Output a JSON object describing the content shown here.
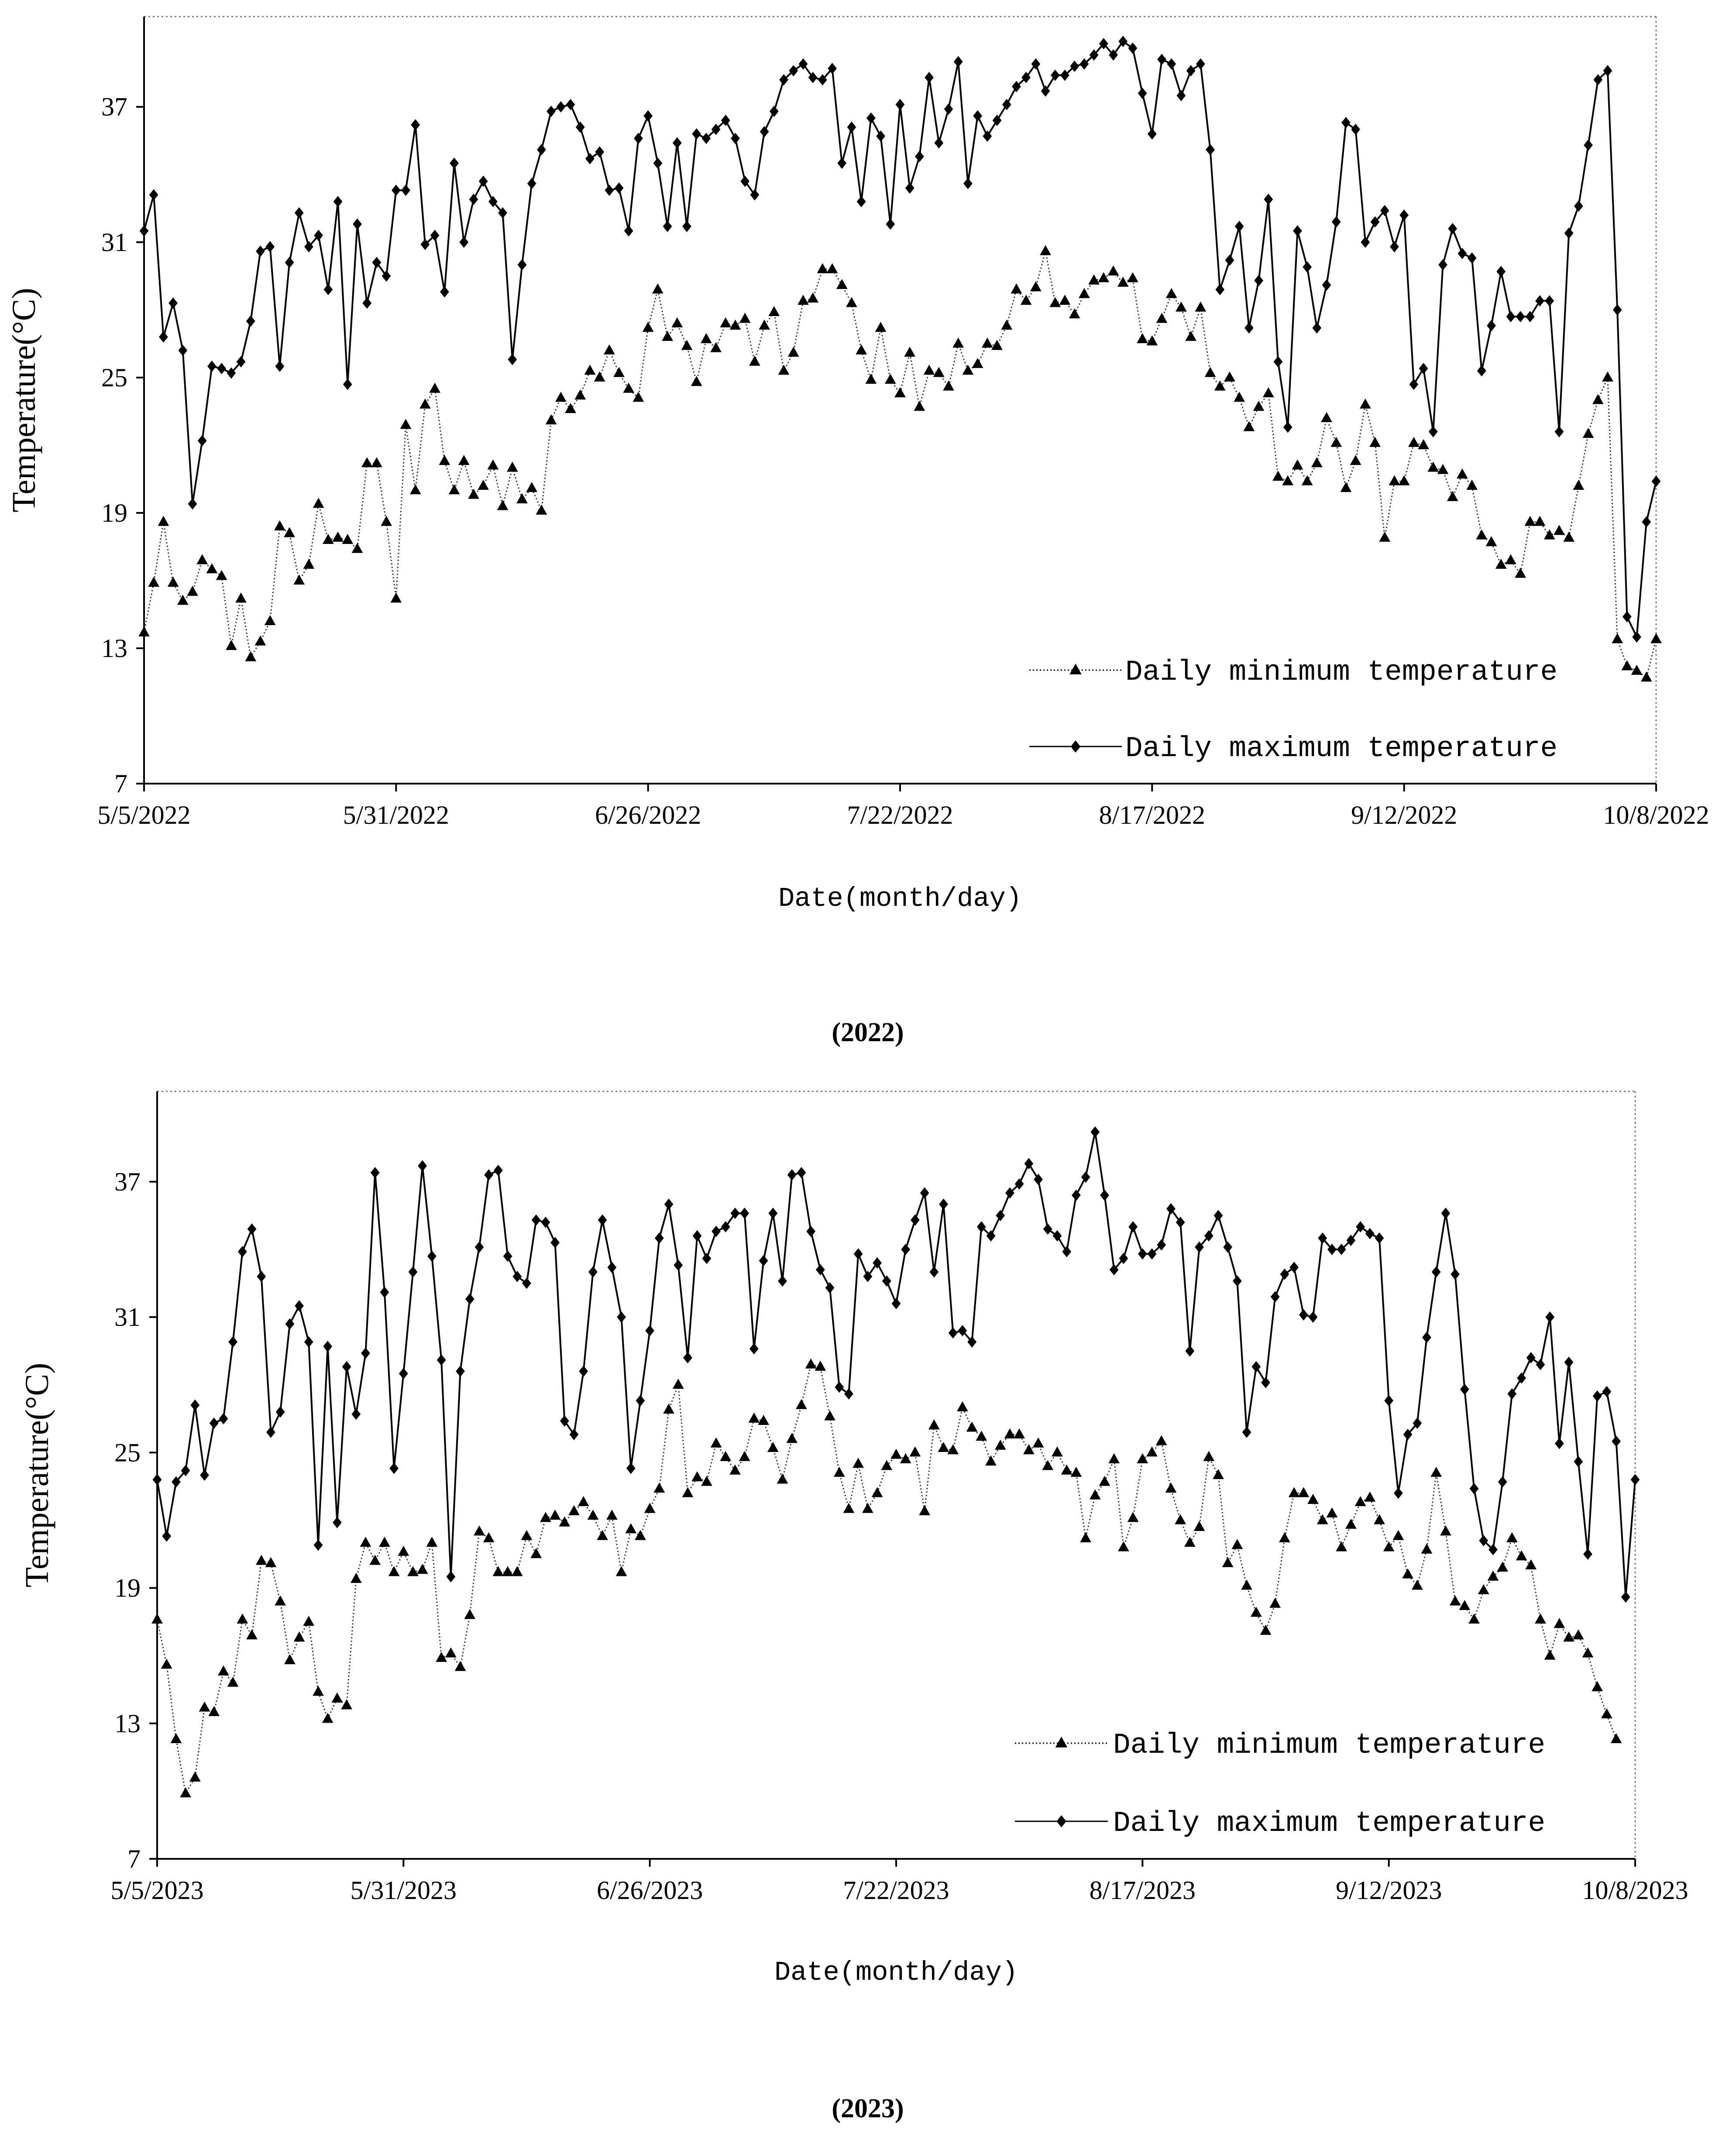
{
  "chart_data": [
    {
      "type": "line",
      "caption": "(2022)",
      "xlabel": "Date(month/day)",
      "ylabel": "Temperature(°C)",
      "ylim": [
        7,
        41
      ],
      "yticks": [
        7,
        13,
        19,
        25,
        31,
        37
      ],
      "xlim": [
        0,
        156
      ],
      "xticks": [
        0,
        26,
        52,
        78,
        104,
        130,
        156
      ],
      "xtick_labels": [
        "5/5/2022",
        "5/31/2022",
        "6/26/2022",
        "7/22/2022",
        "8/17/2022",
        "9/12/2022",
        "10/8/2022"
      ],
      "grid": false,
      "legend_position": "bottom-right",
      "series": [
        {
          "name": "Daily minimum temperature",
          "marker": "triangle",
          "line_style": "dotted",
          "values": [
            13.7,
            15.9,
            18.6,
            15.9,
            15.1,
            15.5,
            16.9,
            16.5,
            16.2,
            13.1,
            15.2,
            12.6,
            13.3,
            14.2,
            18.4,
            18.1,
            16.0,
            16.7,
            19.4,
            17.8,
            17.9,
            17.8,
            17.4,
            21.2,
            21.2,
            18.6,
            15.2,
            22.9,
            20.0,
            23.8,
            24.5,
            21.3,
            20.0,
            21.3,
            19.8,
            20.2,
            21.1,
            19.3,
            21.0,
            19.6,
            20.1,
            19.1,
            23.1,
            24.1,
            23.6,
            24.2,
            25.3,
            25.0,
            26.2,
            25.2,
            24.5,
            24.1,
            27.2,
            28.9,
            26.8,
            27.4,
            26.4,
            24.8,
            26.7,
            26.3,
            27.4,
            27.3,
            27.6,
            25.7,
            27.3,
            27.9,
            25.3,
            26.1,
            28.4,
            28.5,
            29.8,
            29.8,
            29.1,
            28.3,
            26.2,
            24.9,
            27.2,
            24.9,
            24.3,
            26.1,
            23.7,
            25.3,
            25.2,
            24.6,
            26.5,
            25.3,
            25.6,
            26.5,
            26.4,
            27.3,
            28.9,
            28.4,
            29.0,
            30.6,
            28.3,
            28.4,
            27.8,
            28.7,
            29.3,
            29.4,
            29.7,
            29.2,
            29.4,
            26.7,
            26.6,
            27.6,
            28.7,
            28.1,
            26.8,
            28.1,
            25.2,
            24.6,
            25.0,
            24.1,
            22.8,
            23.7,
            24.3,
            20.6,
            20.4,
            21.1,
            20.4,
            21.2,
            23.2,
            22.1,
            20.1,
            21.3,
            23.8,
            22.1,
            17.9,
            20.4,
            20.4,
            22.1,
            22.0,
            21.0,
            20.9,
            19.7,
            20.7,
            20.2,
            18.0,
            17.7,
            16.7,
            16.9,
            16.3,
            18.6,
            18.6,
            18.0,
            18.2,
            17.9,
            20.2,
            22.5,
            24.0,
            25.0,
            13.4,
            12.2,
            12.0,
            11.7,
            13.4
          ]
        },
        {
          "name": "Daily maximum temperature",
          "marker": "diamond",
          "line_style": "solid",
          "values": [
            31.5,
            33.1,
            26.8,
            28.3,
            26.2,
            19.4,
            22.2,
            25.5,
            25.4,
            25.2,
            25.7,
            27.5,
            30.6,
            30.8,
            25.5,
            30.1,
            32.3,
            30.8,
            31.3,
            28.9,
            32.8,
            24.7,
            31.8,
            28.3,
            30.1,
            29.5,
            33.3,
            33.3,
            36.2,
            30.9,
            31.3,
            28.8,
            34.5,
            31.0,
            32.9,
            33.7,
            32.8,
            32.3,
            25.8,
            30.0,
            33.6,
            35.1,
            36.8,
            37.0,
            37.1,
            36.1,
            34.7,
            35.0,
            33.3,
            33.4,
            31.5,
            35.6,
            36.6,
            34.5,
            31.7,
            35.4,
            31.7,
            35.8,
            35.6,
            36.0,
            36.4,
            35.6,
            33.7,
            33.1,
            35.9,
            36.8,
            38.2,
            38.6,
            38.9,
            38.3,
            38.2,
            38.7,
            34.5,
            36.1,
            32.8,
            36.5,
            35.7,
            31.8,
            37.1,
            33.4,
            34.8,
            38.3,
            35.4,
            36.9,
            39.0,
            33.6,
            36.6,
            35.7,
            36.4,
            37.1,
            37.9,
            38.3,
            38.9,
            37.7,
            38.4,
            38.4,
            38.8,
            38.9,
            39.3,
            39.8,
            39.3,
            39.9,
            39.6,
            37.6,
            35.8,
            39.1,
            38.9,
            37.5,
            38.6,
            38.9,
            35.1,
            28.9,
            30.2,
            31.7,
            27.2,
            29.3,
            32.9,
            25.7,
            22.8,
            31.5,
            29.9,
            27.2,
            29.1,
            31.9,
            36.3,
            36.0,
            31.0,
            31.9,
            32.4,
            30.8,
            32.2,
            24.7,
            25.4,
            22.6,
            30.0,
            31.6,
            30.5,
            30.3,
            25.3,
            27.3,
            29.7,
            27.7,
            27.7,
            27.7,
            28.4,
            28.4,
            22.6,
            31.4,
            32.6,
            35.3,
            38.2,
            38.6,
            28.0,
            14.4,
            13.5,
            18.6,
            20.4
          ]
        }
      ]
    },
    {
      "type": "line",
      "caption": "(2023)",
      "xlabel": "Date(month/day)",
      "ylabel": "Temperature(°C)",
      "ylim": [
        7,
        41
      ],
      "yticks": [
        7,
        13,
        19,
        25,
        31,
        37
      ],
      "xlim": [
        0,
        156
      ],
      "xticks": [
        0,
        26,
        52,
        78,
        104,
        130,
        156
      ],
      "xtick_labels": [
        "5/5/2023",
        "5/31/2023",
        "6/26/2023",
        "7/22/2023",
        "8/17/2023",
        "9/12/2023",
        "10/8/2023"
      ],
      "grid": false,
      "legend_position": "bottom-right",
      "series": [
        {
          "name": "Daily minimum temperature",
          "marker": "triangle",
          "line_style": "dotted",
          "values": [
            17.6,
            15.6,
            12.3,
            9.9,
            10.6,
            13.7,
            13.5,
            15.3,
            14.8,
            17.6,
            16.9,
            20.2,
            20.1,
            18.4,
            15.8,
            16.8,
            17.5,
            14.4,
            13.2,
            14.1,
            13.8,
            19.4,
            21.0,
            20.2,
            21.0,
            19.7,
            20.6,
            19.7,
            19.8,
            21.0,
            15.9,
            16.1,
            15.5,
            17.8,
            21.5,
            21.2,
            19.7,
            19.7,
            19.7,
            21.3,
            20.5,
            22.1,
            22.2,
            21.9,
            22.4,
            22.8,
            22.2,
            21.3,
            22.2,
            19.7,
            21.6,
            21.3,
            22.5,
            23.4,
            26.9,
            28.0,
            23.2,
            23.9,
            23.7,
            25.4,
            24.8,
            24.2,
            24.8,
            26.5,
            26.4,
            25.2,
            23.8,
            25.6,
            27.1,
            28.9,
            28.8,
            26.6,
            24.1,
            22.5,
            24.5,
            22.5,
            23.2,
            24.4,
            24.9,
            24.7,
            25.0,
            22.4,
            26.2,
            25.2,
            25.1,
            27.0,
            26.1,
            25.7,
            24.6,
            25.3,
            25.8,
            25.8,
            25.1,
            25.4,
            24.4,
            25.0,
            24.2,
            24.1,
            21.2,
            23.1,
            23.7,
            24.7,
            20.8,
            22.1,
            24.7,
            25.0,
            25.5,
            23.4,
            22.0,
            21.0,
            21.7,
            24.8,
            24.0,
            20.1,
            20.9,
            19.1,
            17.9,
            17.1,
            18.3,
            21.2,
            23.2,
            23.2,
            22.9,
            22.0,
            22.3,
            20.8,
            21.8,
            22.8,
            23.0,
            22.0,
            20.8,
            21.3,
            19.6,
            19.1,
            20.7,
            24.1,
            21.5,
            18.4,
            18.2,
            17.6,
            18.9,
            19.5,
            19.9,
            21.2,
            20.4,
            20.0,
            17.6,
            16.0,
            17.4,
            16.8,
            16.9,
            16.1,
            14.6,
            13.4,
            12.3
          ]
        },
        {
          "name": "Daily maximum temperature",
          "marker": "diamond",
          "line_style": "solid",
          "values": [
            23.8,
            21.3,
            23.7,
            24.2,
            27.1,
            24.0,
            26.3,
            26.5,
            29.9,
            33.9,
            34.9,
            32.8,
            25.9,
            26.8,
            30.7,
            31.5,
            29.9,
            20.9,
            29.7,
            21.9,
            28.8,
            26.7,
            29.4,
            37.4,
            32.1,
            24.3,
            28.5,
            33.0,
            37.7,
            33.7,
            29.1,
            19.5,
            28.6,
            31.8,
            34.1,
            37.3,
            37.5,
            33.7,
            32.8,
            32.5,
            35.3,
            35.2,
            34.3,
            26.4,
            25.8,
            28.6,
            33.0,
            35.3,
            33.2,
            31.0,
            24.3,
            27.3,
            30.4,
            34.5,
            36.0,
            33.3,
            29.2,
            34.6,
            33.6,
            34.8,
            35.0,
            35.6,
            35.6,
            29.6,
            33.5,
            35.6,
            32.6,
            37.3,
            37.4,
            34.8,
            33.1,
            32.3,
            27.9,
            27.6,
            33.8,
            32.8,
            33.4,
            32.6,
            31.6,
            34.0,
            35.3,
            36.5,
            33.0,
            36.0,
            30.3,
            30.4,
            29.9,
            35.0,
            34.6,
            35.5,
            36.5,
            36.9,
            37.8,
            37.1,
            34.9,
            34.6,
            33.9,
            36.4,
            37.2,
            39.2,
            36.4,
            33.1,
            33.6,
            35.0,
            33.8,
            33.8,
            34.2,
            35.8,
            35.2,
            29.5,
            34.1,
            34.6,
            35.5,
            34.1,
            32.6,
            25.9,
            28.8,
            28.1,
            31.9,
            32.9,
            33.2,
            31.1,
            31.0,
            34.5,
            34.0,
            34.0,
            34.4,
            35.0,
            34.7,
            34.5,
            27.3,
            23.2,
            25.8,
            26.3,
            30.1,
            33.0,
            35.6,
            32.9,
            27.8,
            23.4,
            21.1,
            20.7,
            23.7,
            27.6,
            28.3,
            29.2,
            28.9,
            31.0,
            25.4,
            29.0,
            24.6,
            20.5,
            27.5,
            27.7,
            25.5,
            18.6,
            23.8
          ]
        }
      ]
    }
  ]
}
